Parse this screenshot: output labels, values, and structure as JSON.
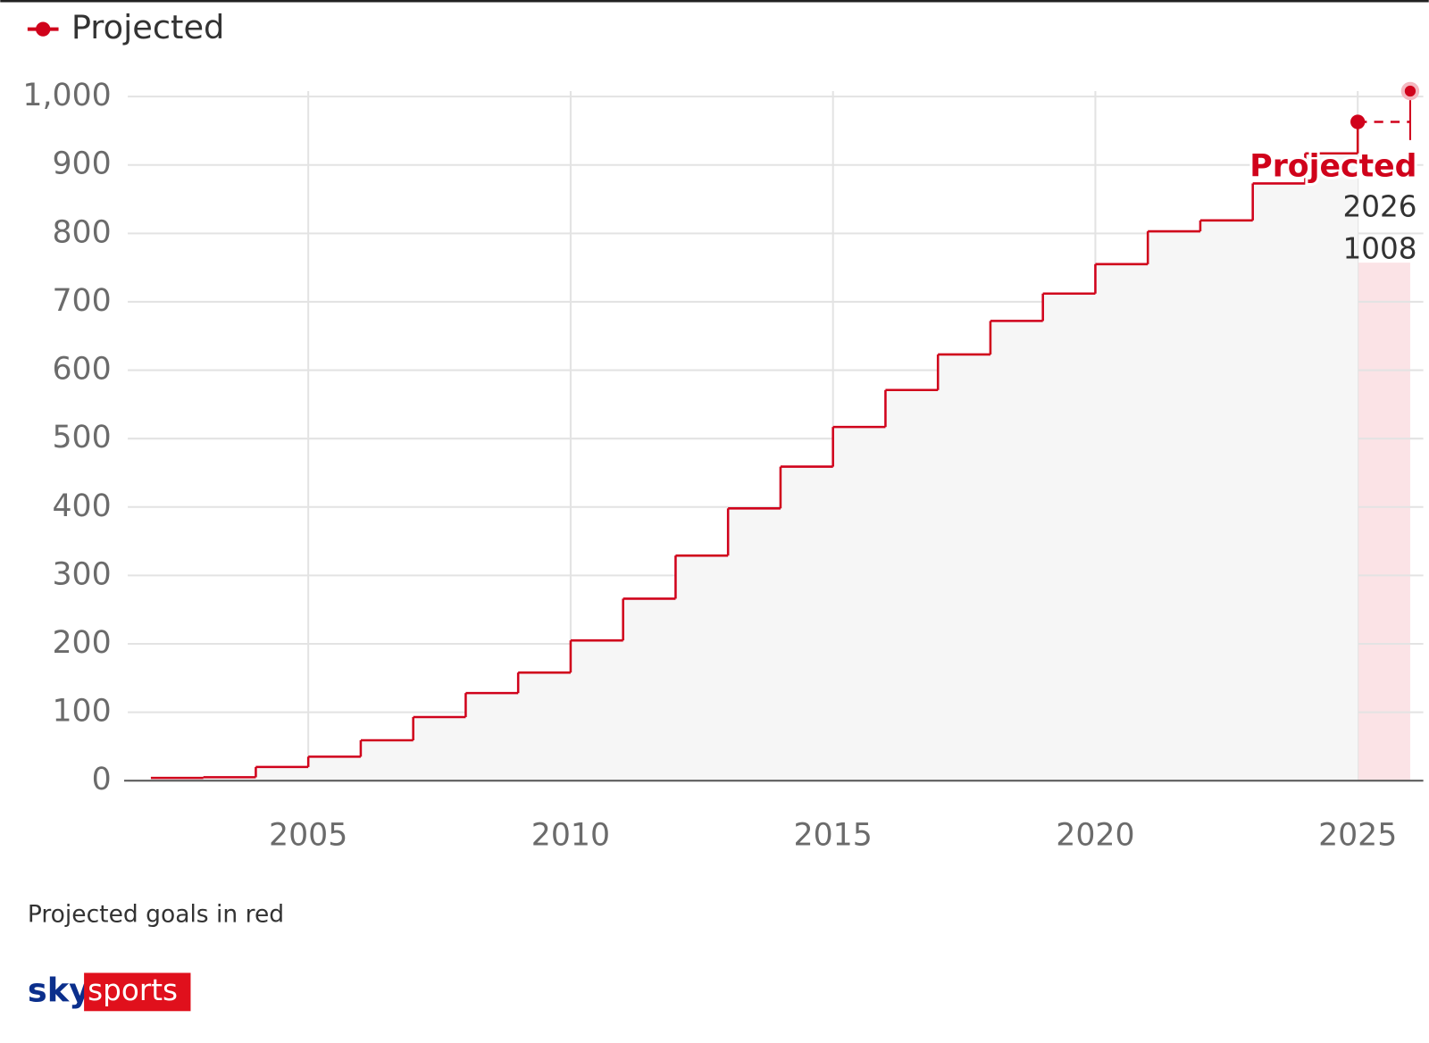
{
  "chart_data": {
    "type": "step",
    "x": [
      2002,
      2003,
      2004,
      2005,
      2006,
      2007,
      2008,
      2009,
      2010,
      2011,
      2012,
      2013,
      2014,
      2015,
      2016,
      2017,
      2018,
      2019,
      2020,
      2021,
      2022,
      2023,
      2024
    ],
    "values": [
      4,
      5,
      20,
      35,
      59,
      93,
      128,
      158,
      205,
      266,
      329,
      398,
      459,
      517,
      571,
      623,
      672,
      712,
      755,
      803,
      819,
      873,
      917
    ],
    "color": "#d0021b",
    "projected": {
      "name": "Projected",
      "color": "#d0021b",
      "x": [
        2025,
        2026
      ],
      "values": [
        963,
        1008
      ]
    },
    "xlim": [
      2001.56,
      2026.25
    ],
    "ylim": [
      0,
      1000
    ],
    "xticks": [
      2005,
      2010,
      2015,
      2020,
      2025
    ],
    "yticks": [
      0,
      100,
      200,
      300,
      400,
      500,
      600,
      700,
      800,
      900,
      {
        "value": 1000,
        "label": "1,000"
      }
    ],
    "grid": true,
    "note": "Projected goals in red",
    "logo": [
      "sky",
      "sports"
    ]
  }
}
